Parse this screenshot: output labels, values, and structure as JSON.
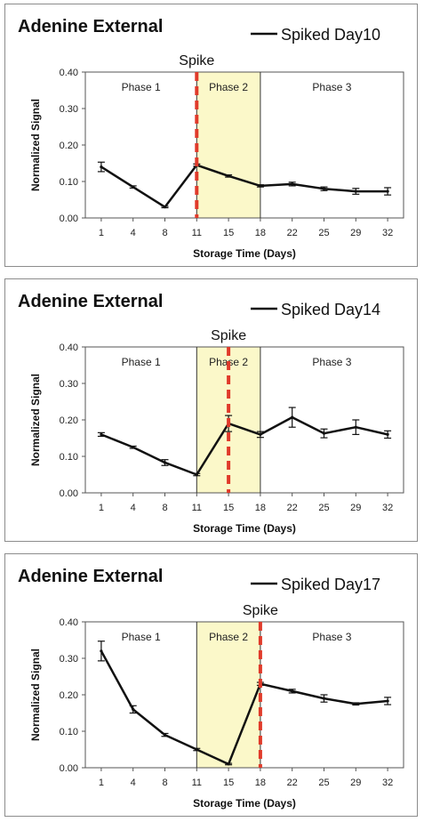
{
  "chart_data": [
    {
      "type": "line",
      "title": "Adenine External",
      "legend": "Spiked Day10",
      "legend_position": "top-right",
      "spike_label": "Spike",
      "spike_at": "11",
      "phase2_range": [
        "11",
        "18"
      ],
      "phases": [
        "Phase 1",
        "Phase 2",
        "Phase 3"
      ],
      "xlabel": "Storage Time (Days)",
      "ylabel": "Normalized Signal",
      "ylim": [
        0,
        0.4
      ],
      "yticks": [
        "0.00",
        "0.10",
        "0.20",
        "0.30",
        "0.40"
      ],
      "categories": [
        "1",
        "4",
        "8",
        "11",
        "15",
        "18",
        "22",
        "25",
        "29",
        "32"
      ],
      "series": [
        {
          "name": "Spiked Day10",
          "values": [
            0.14,
            0.085,
            0.03,
            0.145,
            0.115,
            0.088,
            0.093,
            0.08,
            0.073,
            0.073
          ],
          "errors": [
            0.013,
            0.003,
            0.002,
            0.003,
            0.003,
            0.003,
            0.005,
            0.005,
            0.008,
            0.01
          ]
        }
      ],
      "grid": false,
      "colors": {
        "line": "#111111",
        "phase2_fill": "#fbf8c9",
        "spike_line": "#e03a2a"
      }
    },
    {
      "type": "line",
      "title": "Adenine External",
      "legend": "Spiked Day14",
      "legend_position": "top-right",
      "spike_label": "Spike",
      "spike_at": "15",
      "phase2_range": [
        "11",
        "18"
      ],
      "phases": [
        "Phase 1",
        "Phase 2",
        "Phase 3"
      ],
      "xlabel": "Storage Time (Days)",
      "ylabel": "Normalized Signal",
      "ylim": [
        0,
        0.4
      ],
      "yticks": [
        "0.00",
        "0.10",
        "0.20",
        "0.30",
        "0.40"
      ],
      "categories": [
        "1",
        "4",
        "8",
        "11",
        "15",
        "18",
        "22",
        "25",
        "29",
        "32"
      ],
      "series": [
        {
          "name": "Spiked Day14",
          "values": [
            0.16,
            0.125,
            0.083,
            0.05,
            0.19,
            0.16,
            0.207,
            0.163,
            0.18,
            0.16
          ],
          "errors": [
            0.005,
            0.003,
            0.008,
            0.003,
            0.022,
            0.008,
            0.027,
            0.012,
            0.02,
            0.01
          ]
        }
      ],
      "grid": false,
      "colors": {
        "line": "#111111",
        "phase2_fill": "#fbf8c9",
        "spike_line": "#e03a2a"
      }
    },
    {
      "type": "line",
      "title": "Adenine External",
      "legend": "Spiked Day17",
      "legend_position": "top-right",
      "spike_label": "Spike",
      "spike_at": "18",
      "phase2_range": [
        "11",
        "18"
      ],
      "phases": [
        "Phase 1",
        "Phase 2",
        "Phase 3"
      ],
      "xlabel": "Storage Time (Days)",
      "ylabel": "Normalized Signal",
      "ylim": [
        0,
        0.4
      ],
      "yticks": [
        "0.00",
        "0.10",
        "0.20",
        "0.30",
        "0.40"
      ],
      "categories": [
        "1",
        "4",
        "8",
        "11",
        "15",
        "18",
        "22",
        "25",
        "29",
        "32"
      ],
      "series": [
        {
          "name": "Spiked Day17",
          "values": [
            0.32,
            0.16,
            0.09,
            0.05,
            0.01,
            0.23,
            0.21,
            0.19,
            0.175,
            0.183
          ],
          "errors": [
            0.027,
            0.01,
            0.004,
            0.003,
            0.002,
            0.004,
            0.005,
            0.01,
            0.003,
            0.01
          ]
        }
      ],
      "grid": false,
      "colors": {
        "line": "#111111",
        "phase2_fill": "#fbf8c9",
        "spike_line": "#e03a2a"
      }
    }
  ]
}
